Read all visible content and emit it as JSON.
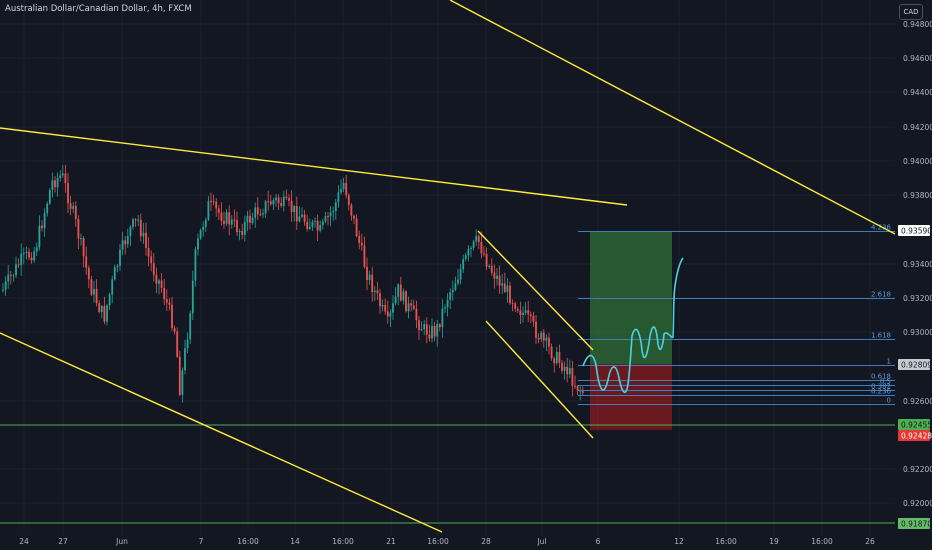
{
  "header": {
    "title": "Australian Dollar/Canadian Dollar, 4h, FXCM",
    "currency": "CAD"
  },
  "colors": {
    "background": "#131722",
    "up_candle": "#26a69a",
    "down_candle": "#ef5350",
    "trendline": "#ffeb3b",
    "support_line": "#4caf50",
    "fib_line": "#3d7ebf",
    "projection": "#4dd0e1",
    "profit_zone": "rgba(56,142,60,0.55)",
    "loss_zone": "rgba(178,30,30,0.55)"
  },
  "chart_data": {
    "type": "candlestick",
    "symbol": "AUDCAD",
    "price_axis": {
      "ticks": [
        "0.94800",
        "0.94600",
        "0.94400",
        "0.94200",
        "0.94000",
        "0.93800",
        "0.93400",
        "0.93200",
        "0.93000",
        "0.92600",
        "0.92200",
        "0.92000"
      ]
    },
    "time_axis": {
      "ticks": [
        "24",
        "27",
        "Jun",
        "7",
        "16:00",
        "14",
        "16:00",
        "21",
        "16:00",
        "28",
        "Jul",
        "6",
        "12",
        "16:00",
        "19",
        "16:00",
        "26"
      ]
    },
    "price_tags": [
      {
        "label": "0.93590",
        "style": "white",
        "price": 0.9359
      },
      {
        "label": "0.92809",
        "style": "grey",
        "price": 0.92809
      },
      {
        "label": "0.92455",
        "style": "green",
        "price": 0.92455
      },
      {
        "label": "0.92428",
        "style": "red",
        "price": 0.92428
      },
      {
        "label": "0.91870",
        "style": "green",
        "price": 0.9187
      }
    ],
    "fib_levels": [
      {
        "label": "4.236",
        "price": 0.9359
      },
      {
        "label": "2.618",
        "price": 0.932
      },
      {
        "label": "1.618",
        "price": 0.9296
      },
      {
        "label": "1",
        "price": 0.92809
      },
      {
        "label": "0.618",
        "price": 0.9272
      },
      {
        "label": "0.5",
        "price": 0.9269
      },
      {
        "label": "0.382",
        "price": 0.9266
      },
      {
        "label": "0.236",
        "price": 0.9263
      },
      {
        "label": "0",
        "price": 0.9258
      }
    ],
    "long_position": {
      "entry": 0.92809,
      "target": 0.9359,
      "stop": 0.92428
    },
    "horizontal_levels": [
      0.92455,
      0.9187
    ]
  }
}
